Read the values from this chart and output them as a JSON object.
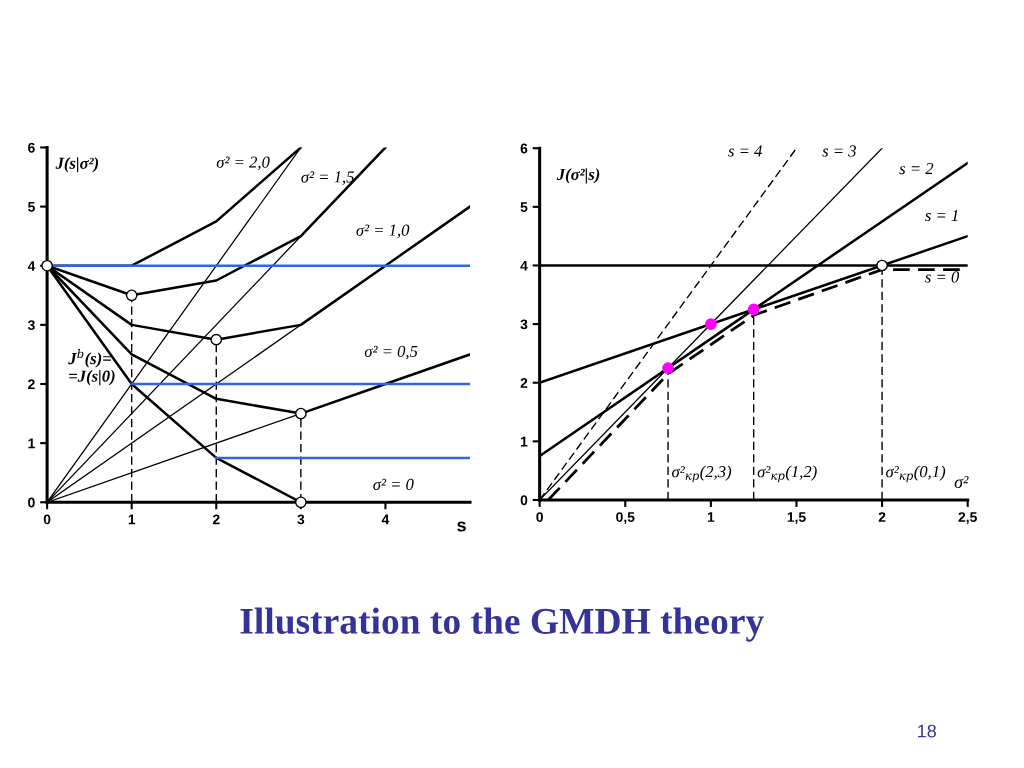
{
  "chart_data": [
    {
      "type": "line",
      "title": "Illustration to the GMDH theory",
      "xlabel": "s",
      "xlim": [
        0,
        5
      ],
      "xticks": [
        0,
        1,
        2,
        3,
        4
      ],
      "ylim": [
        0,
        6
      ],
      "yticks": [
        0,
        1,
        2,
        3,
        4,
        5,
        6
      ],
      "grid": false,
      "legend": false,
      "series": [
        {
          "name": "σ² = 2,0",
          "color": "#000000",
          "x": [
            0,
            1,
            2,
            3
          ],
          "values": [
            4,
            4,
            4.75,
            6
          ]
        },
        {
          "name": "σ² = 1,5",
          "color": "#000000",
          "x": [
            0,
            1,
            2,
            3,
            4
          ],
          "values": [
            4,
            3.5,
            3.75,
            4.5,
            6
          ]
        },
        {
          "name": "σ² = 1,0",
          "color": "#000000",
          "x": [
            0,
            1,
            2,
            3,
            4,
            5
          ],
          "values": [
            4,
            3,
            2.75,
            3,
            4,
            5
          ]
        },
        {
          "name": "σ² = 0,5",
          "color": "#000000",
          "x": [
            0,
            1,
            2,
            3,
            4,
            5
          ],
          "values": [
            4,
            2.5,
            1.75,
            1.5,
            2,
            2.5
          ]
        },
        {
          "name": "σ² = 0",
          "color": "#000000",
          "x": [
            0,
            1,
            2,
            3,
            4,
            5
          ],
          "values": [
            4,
            2,
            0.75,
            0,
            0,
            0
          ]
        },
        {
          "color": "#000000",
          "x": [
            0,
            3
          ],
          "values": [
            0,
            6
          ]
        },
        {
          "color": "#000000",
          "x": [
            0,
            3
          ],
          "values": [
            0,
            4.5
          ]
        },
        {
          "color": "#000000",
          "x": [
            0,
            3
          ],
          "values": [
            0,
            3
          ]
        },
        {
          "color": "#000000",
          "x": [
            0,
            3
          ],
          "values": [
            0,
            1.5
          ]
        },
        {
          "color": "#000000",
          "line_style": "dashed",
          "x": [
            1,
            1
          ],
          "values": [
            0,
            3.5
          ]
        },
        {
          "color": "#000000",
          "line_style": "dashed",
          "x": [
            2,
            2
          ],
          "values": [
            0,
            2.75
          ]
        },
        {
          "color": "#000000",
          "line_style": "dashed",
          "x": [
            3,
            3
          ],
          "values": [
            0,
            1.5
          ]
        },
        {
          "color": "#3366dd",
          "x": [
            0,
            5
          ],
          "values": [
            4,
            4
          ]
        },
        {
          "color": "#3366dd",
          "x": [
            1,
            5
          ],
          "values": [
            2,
            2
          ]
        },
        {
          "color": "#3366dd",
          "x": [
            2,
            5
          ],
          "values": [
            0.75,
            0.75
          ]
        },
        {
          "type": "scatter",
          "marker": "circle",
          "color": "#ffffff",
          "x": [
            0,
            1,
            2,
            3,
            3
          ],
          "values": [
            4,
            3.5,
            2.75,
            1.5,
            0
          ]
        }
      ],
      "annotations": [
        "J(s|σ²)",
        "J$^{b}$(s)=\n=J(s|0)"
      ]
    },
    {
      "type": "line",
      "xlabel": "σ²",
      "xlim": [
        0,
        2.5
      ],
      "xticks": [
        0,
        {
          "value": 0.5,
          "label": "0,5"
        },
        1,
        {
          "value": 1.5,
          "label": "1,5"
        },
        2,
        {
          "value": 2.5,
          "label": "2,5"
        }
      ],
      "ylim": [
        0,
        6
      ],
      "yticks": [
        0,
        1,
        2,
        3,
        4,
        5,
        6
      ],
      "grid": false,
      "legend": false,
      "series": [
        {
          "name": "s = 0",
          "color": "#000000",
          "x": [
            0,
            2.5
          ],
          "values": [
            4,
            4
          ]
        },
        {
          "name": "s = 1",
          "color": "#000000",
          "x": [
            0,
            2.5
          ],
          "values": [
            2,
            4.5
          ]
        },
        {
          "name": "s = 2",
          "color": "#000000",
          "x": [
            0,
            2.5
          ],
          "values": [
            0.75,
            5.75
          ]
        },
        {
          "name": "s = 3",
          "color": "#000000",
          "x": [
            0,
            2
          ],
          "values": [
            0,
            6
          ]
        },
        {
          "name": "s = 4",
          "color": "#000000",
          "line_style": "dashed",
          "x": [
            0,
            1.5
          ],
          "values": [
            0,
            6
          ]
        },
        {
          "color": "#000000",
          "line_style": "dashed",
          "x": [
            0.05,
            0.75,
            1.25,
            2,
            2.5
          ],
          "values": [
            0,
            2.15,
            3.15,
            3.93,
            3.93
          ]
        },
        {
          "color": "#000000",
          "line_style": "dashed",
          "x": [
            0.75,
            0.75
          ],
          "values": [
            0,
            2.25
          ]
        },
        {
          "color": "#000000",
          "line_style": "dashed",
          "x": [
            1.25,
            1.25
          ],
          "values": [
            0,
            3.25
          ]
        },
        {
          "color": "#000000",
          "line_style": "dashed",
          "x": [
            2,
            2
          ],
          "values": [
            0,
            4
          ]
        },
        {
          "type": "scatter",
          "marker": "circle",
          "color": "#ff00ff",
          "x": [
            0.75,
            1,
            1.25
          ],
          "values": [
            2.25,
            3,
            3.25
          ]
        },
        {
          "type": "scatter",
          "marker": "circle",
          "color": "#ffffff",
          "x": [
            2
          ],
          "values": [
            4
          ]
        }
      ],
      "annotations": [
        "J(σ²|s)",
        {
          "text": "σ²$_{кр}$(2,3)",
          "x": 0.75,
          "y": 0
        },
        {
          "text": "σ²$_{кр}$(1,2)",
          "x": 1.25,
          "y": 0
        },
        {
          "text": "σ²$_{кр}$(0,1)",
          "x": 2,
          "y": 0
        },
        "18"
      ]
    }
  ]
}
